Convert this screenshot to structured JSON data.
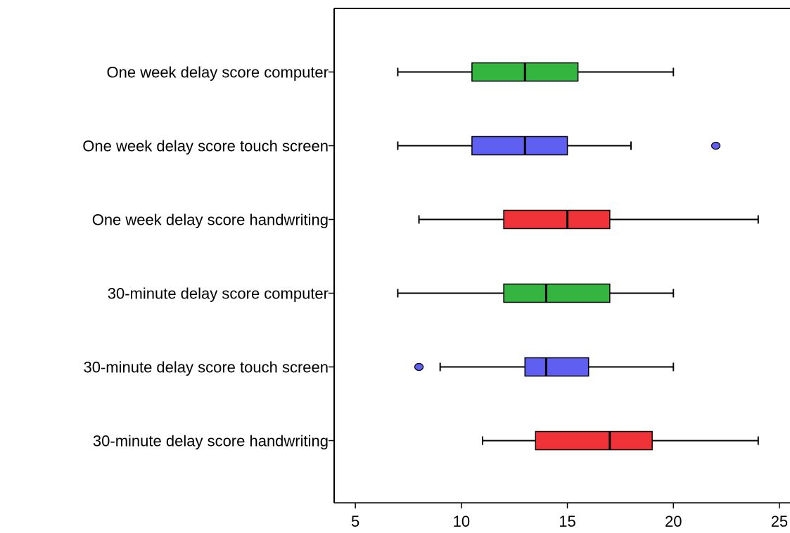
{
  "chart_data": {
    "type": "boxplot",
    "orientation": "horizontal",
    "xlim": [
      4,
      25.5
    ],
    "x_ticks": [
      5,
      10,
      15,
      20,
      25
    ],
    "x_tick_labels": [
      "5",
      "10",
      "15",
      "20",
      "25"
    ],
    "title": "",
    "xlabel": "",
    "ylabel": "",
    "grid": false,
    "categories": [
      "One week delay score computer",
      "One week delay score touch screen",
      "One week delay score handwriting",
      "30-minute delay score computer",
      "30-minute delay score touch screen",
      "30-minute delay score handwriting"
    ],
    "boxes": [
      {
        "label": "One week delay score computer",
        "min": 7,
        "q1": 10.5,
        "median": 13,
        "q3": 15.5,
        "max": 20,
        "outliers": [],
        "color": "#33b540"
      },
      {
        "label": "One week delay score touch screen",
        "min": 7,
        "q1": 10.5,
        "median": 13,
        "q3": 15,
        "max": 18,
        "outliers": [
          22
        ],
        "color": "#5f5ff2"
      },
      {
        "label": "One week delay score handwriting",
        "min": 8,
        "q1": 12,
        "median": 15,
        "q3": 17,
        "max": 24,
        "outliers": [],
        "color": "#ef3339"
      },
      {
        "label": "30-minute delay score computer",
        "min": 7,
        "q1": 12,
        "median": 14,
        "q3": 17,
        "max": 20,
        "outliers": [],
        "color": "#33b540"
      },
      {
        "label": "30-minute delay score touch screen",
        "min": 9,
        "q1": 13,
        "median": 14,
        "q3": 16,
        "max": 20,
        "outliers": [
          8
        ],
        "color": "#5f5ff2"
      },
      {
        "label": "30-minute delay score handwriting",
        "min": 11,
        "q1": 13.5,
        "median": 17,
        "q3": 19,
        "max": 24,
        "outliers": [],
        "color": "#ef3339"
      }
    ]
  }
}
